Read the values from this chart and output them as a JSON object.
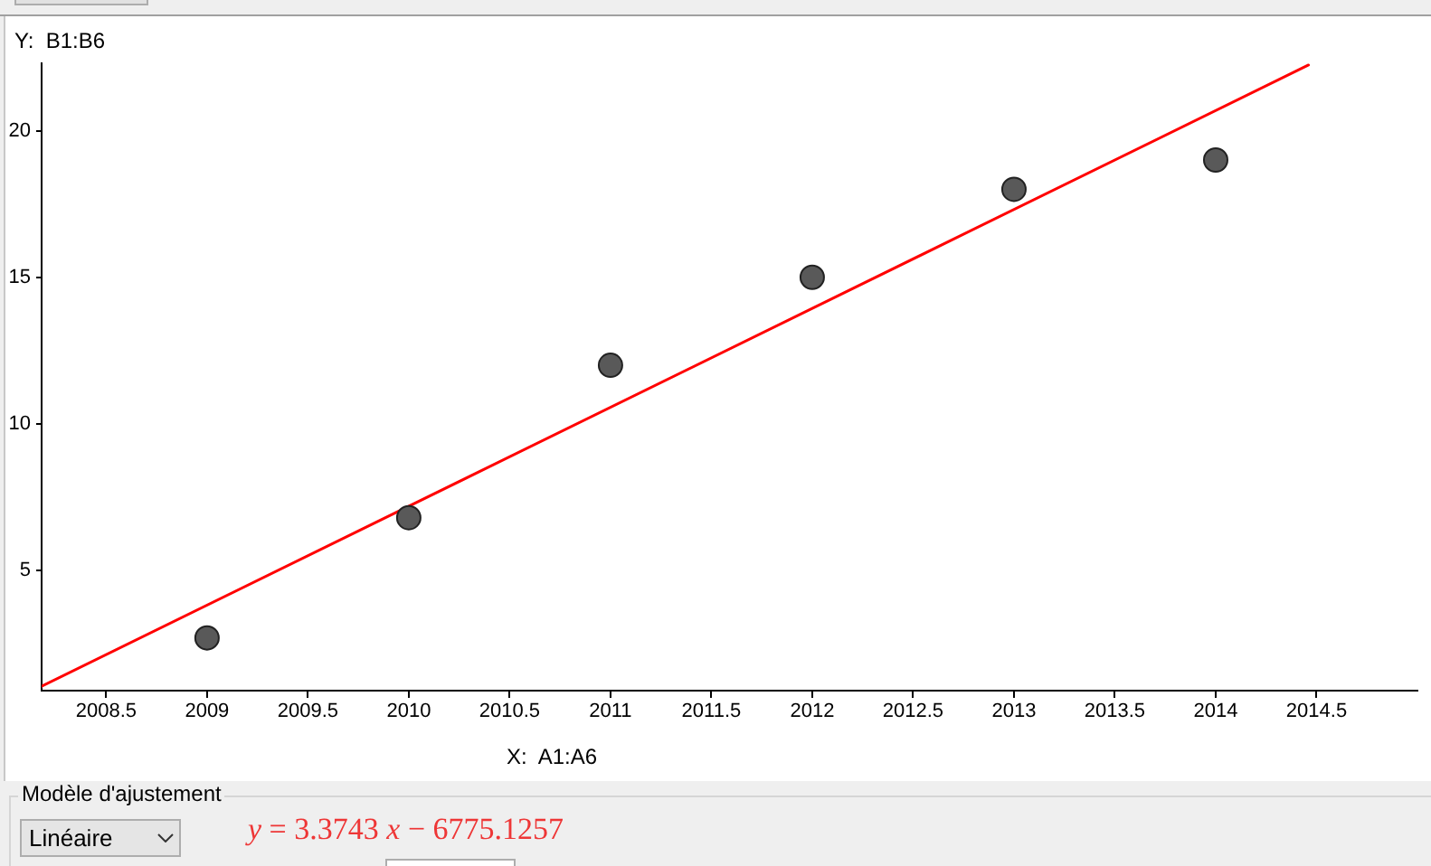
{
  "chart_data": {
    "type": "scatter",
    "xlabel": "X:  A1:A6",
    "ylabel": "Y:  B1:B6",
    "x": [
      2009,
      2010,
      2011,
      2012,
      2013,
      2014
    ],
    "series": [
      {
        "color": "#595959",
        "values": [
          2.7,
          6.8,
          12,
          15,
          18,
          19
        ]
      },
      {
        "type": "line",
        "color": "#ff0000",
        "marker": "none",
        "x": [
          2008.18,
          2014.46
        ],
        "values": [
          1.05,
          22.24
        ]
      }
    ],
    "xlim": [
      2008.18,
      2015
    ],
    "ylim": [
      0.9,
      22.3
    ],
    "xticks": [
      2008.5,
      2009,
      2009.5,
      2010,
      2010.5,
      2011,
      2011.5,
      2012,
      2012.5,
      2013,
      2013.5,
      2014,
      2014.5
    ],
    "yticks": [
      5,
      10,
      15,
      20
    ],
    "marker": "circle",
    "annotations": [
      "Modèle d'ajustement",
      "Linéaire",
      "y = 3.3743 x − 6775.1257"
    ]
  }
}
